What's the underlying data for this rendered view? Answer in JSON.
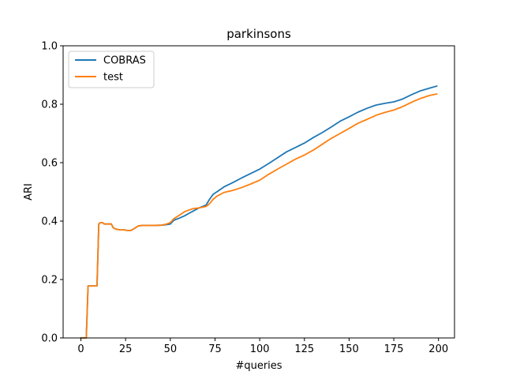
{
  "chart_data": {
    "type": "line",
    "title": "parkinsons",
    "xlabel": "#queries",
    "ylabel": "ARI",
    "xlim": [
      -9.95,
      208.95
    ],
    "ylim": [
      0,
      1
    ],
    "xticks": [
      0,
      25,
      50,
      75,
      100,
      125,
      150,
      175,
      200
    ],
    "yticks": [
      0.0,
      0.2,
      0.4,
      0.6,
      0.8,
      1.0
    ],
    "xtick_labels": [
      "0",
      "25",
      "50",
      "75",
      "100",
      "125",
      "150",
      "175",
      "200"
    ],
    "ytick_labels": [
      "0.0",
      "0.2",
      "0.4",
      "0.6",
      "0.8",
      "1.0"
    ],
    "grid": false,
    "legend_position": "top-left",
    "series": [
      {
        "name": "COBRAS",
        "color": "#1f77b4",
        "x": [
          0,
          2,
          3,
          4,
          5,
          6,
          7,
          8,
          9,
          10,
          11,
          12,
          13,
          14,
          15,
          16,
          17,
          18,
          19,
          20,
          22,
          24,
          26,
          28,
          30,
          32,
          34,
          36,
          40,
          45,
          48,
          50,
          52,
          55,
          58,
          60,
          63,
          66,
          70,
          72,
          74,
          76,
          80,
          85,
          90,
          95,
          100,
          105,
          110,
          115,
          120,
          125,
          130,
          135,
          140,
          145,
          150,
          155,
          160,
          165,
          170,
          175,
          180,
          185,
          190,
          195,
          199
        ],
        "y": [
          0.0,
          0.0,
          0.0,
          0.178,
          0.178,
          0.178,
          0.178,
          0.178,
          0.178,
          0.39,
          0.395,
          0.395,
          0.39,
          0.39,
          0.39,
          0.39,
          0.39,
          0.378,
          0.374,
          0.372,
          0.37,
          0.37,
          0.368,
          0.368,
          0.375,
          0.383,
          0.385,
          0.385,
          0.385,
          0.386,
          0.388,
          0.39,
          0.403,
          0.41,
          0.418,
          0.425,
          0.435,
          0.445,
          0.455,
          0.475,
          0.492,
          0.5,
          0.517,
          0.532,
          0.548,
          0.563,
          0.578,
          0.597,
          0.617,
          0.637,
          0.652,
          0.667,
          0.686,
          0.703,
          0.722,
          0.742,
          0.757,
          0.773,
          0.786,
          0.797,
          0.803,
          0.808,
          0.818,
          0.833,
          0.846,
          0.855,
          0.862
        ]
      },
      {
        "name": "test",
        "color": "#ff7f0e",
        "x": [
          0,
          2,
          3,
          4,
          5,
          6,
          7,
          8,
          9,
          10,
          11,
          12,
          13,
          14,
          15,
          16,
          17,
          18,
          19,
          20,
          22,
          24,
          26,
          28,
          30,
          32,
          34,
          36,
          40,
          45,
          48,
          50,
          52,
          55,
          58,
          60,
          63,
          66,
          70,
          72,
          74,
          76,
          80,
          85,
          90,
          95,
          100,
          105,
          110,
          115,
          120,
          125,
          130,
          135,
          140,
          145,
          150,
          155,
          160,
          165,
          170,
          175,
          180,
          185,
          190,
          195,
          199
        ],
        "y": [
          0.0,
          0.0,
          0.0,
          0.178,
          0.178,
          0.178,
          0.178,
          0.178,
          0.178,
          0.39,
          0.395,
          0.395,
          0.39,
          0.39,
          0.39,
          0.39,
          0.39,
          0.378,
          0.374,
          0.372,
          0.37,
          0.37,
          0.368,
          0.368,
          0.375,
          0.383,
          0.385,
          0.385,
          0.385,
          0.386,
          0.39,
          0.395,
          0.408,
          0.42,
          0.432,
          0.437,
          0.443,
          0.445,
          0.45,
          0.46,
          0.475,
          0.485,
          0.498,
          0.505,
          0.515,
          0.527,
          0.54,
          0.56,
          0.578,
          0.595,
          0.612,
          0.626,
          0.643,
          0.663,
          0.683,
          0.7,
          0.717,
          0.735,
          0.748,
          0.762,
          0.772,
          0.78,
          0.792,
          0.807,
          0.82,
          0.83,
          0.835
        ]
      }
    ]
  }
}
